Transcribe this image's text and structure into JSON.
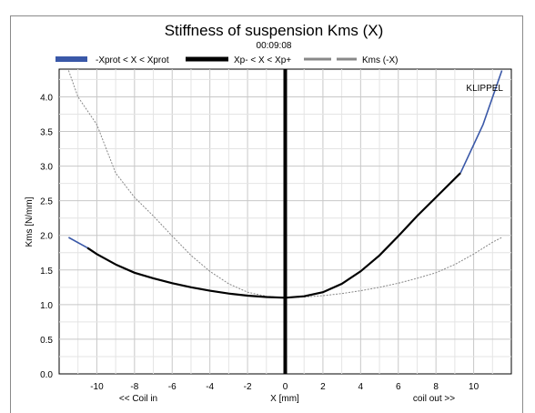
{
  "chart_data": {
    "type": "line",
    "title": "Stiffness of suspension Kms (X)",
    "subtitle": "00:09:08",
    "xlabel": "X [mm]",
    "ylabel": "Kms [N/mm]",
    "x_note_left": "<< Coil in",
    "x_note_right": "coil out >>",
    "watermark": "KLIPPEL",
    "xlim": [
      -12,
      12
    ],
    "ylim": [
      0,
      4.4
    ],
    "xticks": [
      -10,
      -8,
      -6,
      -4,
      -2,
      0,
      2,
      4,
      6,
      8,
      10
    ],
    "yticks": [
      "0.0",
      "0.5",
      "1.0",
      "1.5",
      "2.0",
      "2.5",
      "3.0",
      "3.5",
      "4.0"
    ],
    "grid": true,
    "legend_position": "top",
    "vertical_marker_x": 0,
    "series": [
      {
        "name": "-Xprot < X < Xprot",
        "color": "#3a58a8",
        "style": "solid",
        "x": [
          -11.5,
          -10.5,
          9.3,
          10.5,
          11.5
        ],
        "y": [
          1.97,
          1.82,
          2.9,
          3.6,
          4.38
        ]
      },
      {
        "name": "Xp- < X < Xp+",
        "color": "#000000",
        "style": "solid",
        "x": [
          -10.5,
          -10,
          -9,
          -8,
          -7,
          -6,
          -5,
          -4,
          -3,
          -2,
          -1,
          0,
          1,
          2,
          3,
          4,
          5,
          6,
          7,
          8,
          9.3
        ],
        "y": [
          1.82,
          1.73,
          1.58,
          1.46,
          1.38,
          1.31,
          1.25,
          1.2,
          1.16,
          1.13,
          1.11,
          1.1,
          1.12,
          1.18,
          1.3,
          1.48,
          1.71,
          1.99,
          2.28,
          2.55,
          2.9
        ]
      },
      {
        "name": "Kms (-X)",
        "color": "#888888",
        "style": "dotted",
        "x": [
          -11.5,
          -11,
          -10,
          -9,
          -8,
          -7,
          -6,
          -5,
          -4,
          -3,
          -2,
          -1,
          0,
          1,
          2,
          3,
          4,
          5,
          6,
          7,
          8,
          9,
          10,
          11,
          11.5
        ],
        "y": [
          4.38,
          4.0,
          3.6,
          2.9,
          2.55,
          2.28,
          1.99,
          1.71,
          1.48,
          1.3,
          1.18,
          1.12,
          1.1,
          1.11,
          1.13,
          1.16,
          1.2,
          1.25,
          1.31,
          1.38,
          1.46,
          1.58,
          1.73,
          1.9,
          1.97
        ]
      }
    ]
  }
}
